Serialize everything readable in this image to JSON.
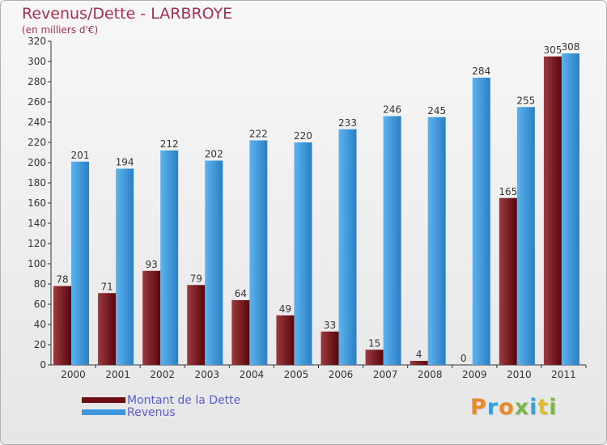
{
  "title": "Revenus/Dette - LARBROYE",
  "subtitle": "(en milliers d'€)",
  "chart_data": {
    "type": "bar",
    "categories": [
      "2000",
      "2001",
      "2002",
      "2003",
      "2004",
      "2005",
      "2006",
      "2007",
      "2008",
      "2009",
      "2010",
      "2011"
    ],
    "series": [
      {
        "name": "Montant de la Dette",
        "color": "#6e0f14",
        "values": [
          78,
          71,
          93,
          79,
          64,
          49,
          33,
          15,
          4,
          0,
          165,
          305
        ]
      },
      {
        "name": "Revenus",
        "color": "#3c97dc",
        "values": [
          201,
          194,
          212,
          202,
          222,
          220,
          233,
          246,
          245,
          284,
          255,
          308
        ]
      }
    ],
    "ylim": [
      0,
      320
    ],
    "yticks": [
      0,
      20,
      40,
      60,
      80,
      100,
      120,
      140,
      160,
      180,
      200,
      220,
      240,
      260,
      280,
      300,
      320
    ],
    "grid": false,
    "legend_position": "bottom-left"
  },
  "legend": {
    "debt_label": "Montant de la Dette",
    "revenue_label": "Revenus"
  },
  "brand": {
    "letters": [
      "P",
      "r",
      "o",
      "x",
      "i",
      "t",
      "i"
    ],
    "colors": [
      "#e8892b",
      "#3aa0d8",
      "#e8892b",
      "#7ab648",
      "#3aa0d8",
      "#e0c020",
      "#7ab648"
    ]
  }
}
